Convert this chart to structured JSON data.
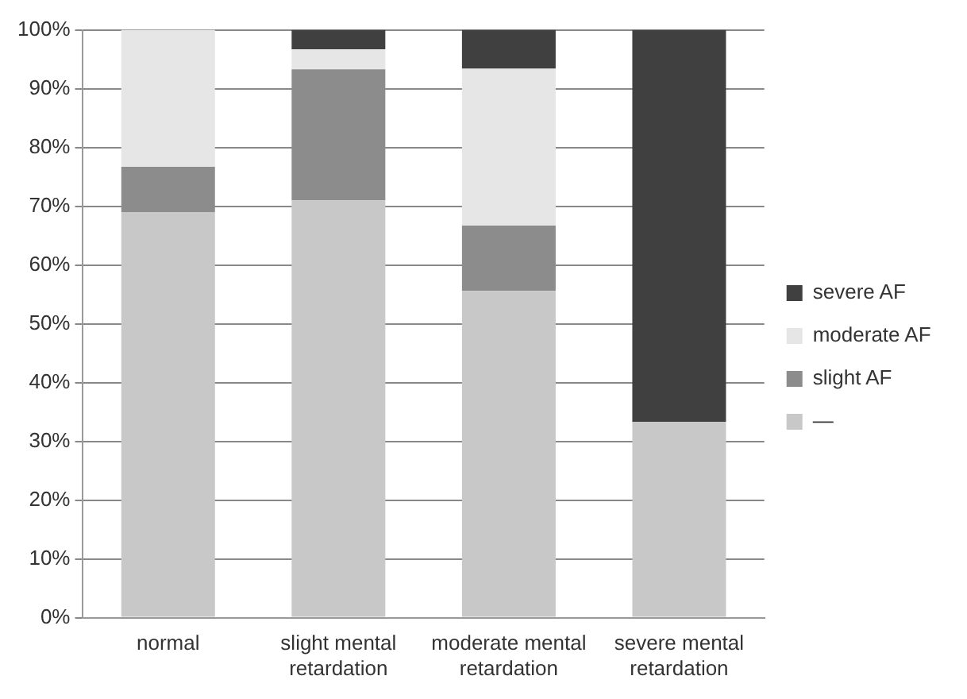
{
  "chart_data": {
    "type": "bar",
    "stacked": true,
    "categories": [
      "normal",
      "slight mental retardation",
      "moderate mental retardation",
      "severe mental retardation"
    ],
    "series": [
      {
        "name": "—",
        "color": "#c8c8c8",
        "values": [
          69,
          71,
          55.6,
          33.3
        ]
      },
      {
        "name": "slight AF",
        "color": "#8c8c8c",
        "values": [
          7.7,
          22.3,
          11.1,
          0
        ]
      },
      {
        "name": "moderate AF",
        "color": "#e6e6e6",
        "values": [
          23.3,
          3.4,
          26.7,
          0
        ]
      },
      {
        "name": "severe AF",
        "color": "#404040",
        "values": [
          0,
          3.3,
          6.6,
          66.7
        ]
      }
    ],
    "ylim": [
      0,
      100
    ],
    "yticks": [
      {
        "value": 0,
        "label": "0%"
      },
      {
        "value": 10,
        "label": "10%"
      },
      {
        "value": 20,
        "label": "20%"
      },
      {
        "value": 30,
        "label": "30%"
      },
      {
        "value": 40,
        "label": "40%"
      },
      {
        "value": 50,
        "label": "50%"
      },
      {
        "value": 60,
        "label": "60%"
      },
      {
        "value": 70,
        "label": "70%"
      },
      {
        "value": 80,
        "label": "80%"
      },
      {
        "value": 90,
        "label": "90%"
      },
      {
        "value": 100,
        "label": "100%"
      }
    ],
    "grid": "y",
    "legend": "right"
  }
}
